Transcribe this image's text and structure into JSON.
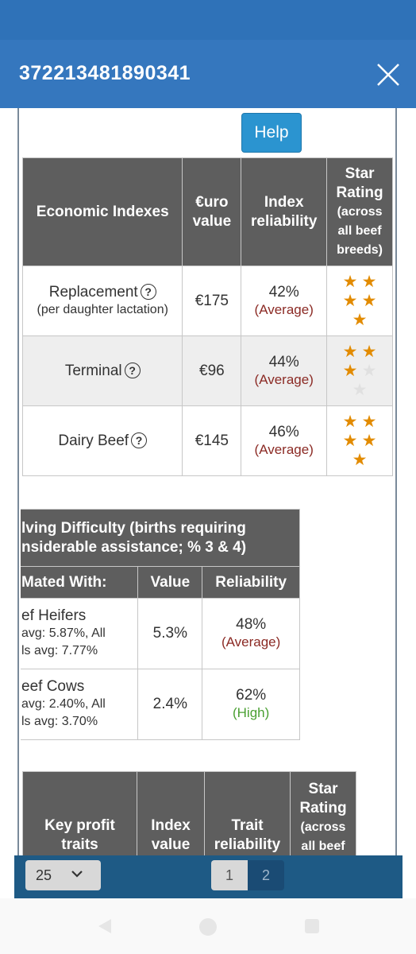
{
  "header": {
    "title": "372213481890341",
    "close_icon": "close-icon"
  },
  "help_label": "Help",
  "economic": {
    "headers": [
      "Economic Indexes",
      "€uro value",
      "Index reliability",
      "Star Rating (across all beef breeds)"
    ],
    "header_lines": {
      "col2": [
        "€uro",
        "value"
      ],
      "col3": [
        "Index",
        "reliability"
      ],
      "col4": [
        "Star",
        "Rating",
        "(across",
        "all beef",
        "breeds)"
      ]
    },
    "rows": [
      {
        "name": "Replacement",
        "sub": "(per daughter lactation)",
        "value": "€175",
        "reliability": "42%",
        "level": "(Average)",
        "stars": 5
      },
      {
        "name": "Terminal",
        "sub": "",
        "value": "€96",
        "reliability": "44%",
        "level": "(Average)",
        "stars": 3
      },
      {
        "name": "Dairy Beef",
        "sub": "",
        "value": "€145",
        "reliability": "46%",
        "level": "(Average)",
        "stars": 5
      }
    ],
    "help_icon": "question-circle-icon",
    "star_icon": "star-icon"
  },
  "calving": {
    "title_line1": "lving Difficulty (births requiring",
    "title_line2": "nsiderable assistance; % 3 & 4)",
    "headers": [
      "Mated With:",
      "Value",
      "Reliability"
    ],
    "rows": [
      {
        "name": "ef Heifers",
        "sub1": "avg: 5.87%, All",
        "sub2": "ls avg: 7.77%",
        "value": "5.3%",
        "reliability": "48%",
        "level": "(Average)"
      },
      {
        "name": "eef Cows",
        "sub1": "avg: 2.40%, All",
        "sub2": "ls avg: 3.70%",
        "value": "2.4%",
        "reliability": "62%",
        "level": "(High)"
      }
    ]
  },
  "key_profit": {
    "header_lines": {
      "col1": [
        "Key profit",
        "traits"
      ],
      "col2": [
        "Index",
        "value"
      ],
      "col3": [
        "Trait",
        "reliability"
      ],
      "col4": [
        "Star",
        "Rating",
        "(across",
        "all beef"
      ]
    }
  },
  "pager": {
    "page_size": "25",
    "pages": [
      "1",
      "2"
    ],
    "current": "2"
  },
  "colors": {
    "header": "#3577be",
    "table_header": "#5e5e5e",
    "star": "#e28b00",
    "average": "#8b2a24",
    "high": "#4aa032",
    "pager": "#1e5a85"
  }
}
